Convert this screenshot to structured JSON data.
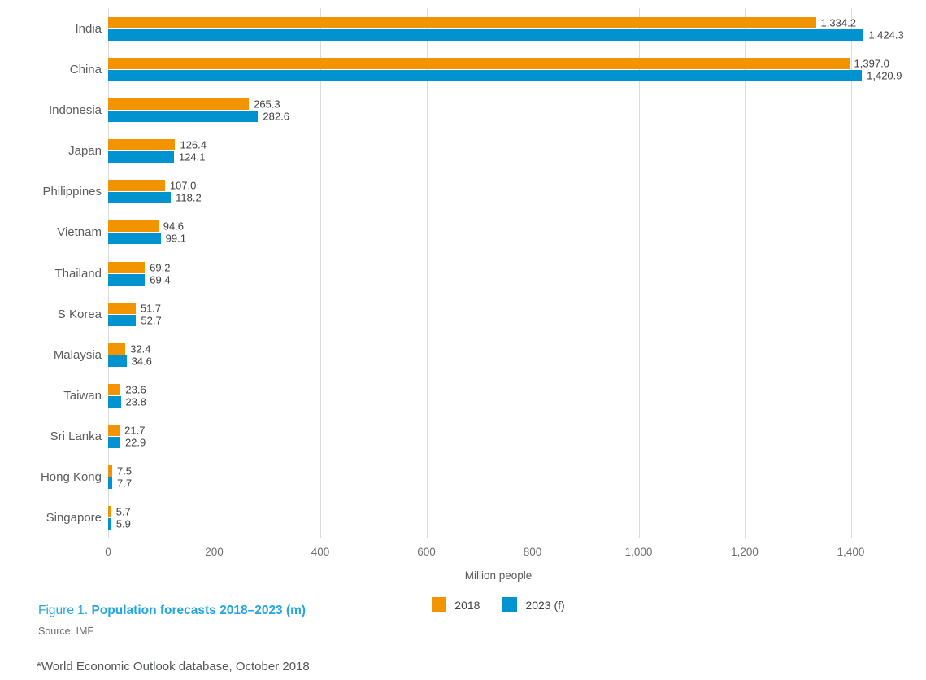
{
  "chart_data": {
    "type": "bar",
    "orientation": "horizontal",
    "title": "Population forecasts 2018–2023 (m)",
    "categories": [
      "India",
      "China",
      "Indonesia",
      "Japan",
      "Philippines",
      "Vietnam",
      "Thailand",
      "S Korea",
      "Malaysia",
      "Taiwan",
      "Sri Lanka",
      "Hong Kong",
      "Singapore"
    ],
    "series": [
      {
        "name": "2018",
        "color": "#f29400",
        "values": [
          1334.2,
          1397.0,
          265.3,
          126.4,
          107.0,
          94.6,
          69.2,
          51.7,
          32.4,
          23.6,
          21.7,
          7.5,
          5.7
        ],
        "labels": [
          "1,334.2",
          "1,397.0",
          "265.3",
          "126.4",
          "107.0",
          "94.6",
          "69.2",
          "51.7",
          "32.4",
          "23.6",
          "21.7",
          "7.5",
          "5.7"
        ]
      },
      {
        "name": "2023 (f)",
        "color": "#0093d0",
        "values": [
          1424.3,
          1420.9,
          282.6,
          124.1,
          118.2,
          99.1,
          69.4,
          52.7,
          34.6,
          23.8,
          22.9,
          7.7,
          5.9
        ],
        "labels": [
          "1,424.3",
          "1,420.9",
          "282.6",
          "124.1",
          "118.2",
          "99.1",
          "69.4",
          "52.7",
          "34.6",
          "23.8",
          "22.9",
          "7.7",
          "5.9"
        ]
      }
    ],
    "xlabel": "Million people",
    "xlim": [
      0,
      1400
    ],
    "x_ticks": [
      0,
      200,
      400,
      600,
      800,
      1000,
      1200,
      1400
    ],
    "x_tick_labels": [
      "0",
      "200",
      "400",
      "600",
      "800",
      "1,000",
      "1,200",
      "1,400"
    ],
    "grid": "vertical",
    "legend_position": "bottom-center"
  },
  "caption": {
    "figure_label": "Figure 1.",
    "title": "Population forecasts 2018–2023 (m)",
    "source": "Source: IMF"
  },
  "footnote": "*World Economic Outlook database, October 2018",
  "colors": {
    "bar_2018": "#f29400",
    "bar_2023": "#0093d0",
    "caption_blue": "#25a5de",
    "gridline": "#dbdbdb"
  }
}
